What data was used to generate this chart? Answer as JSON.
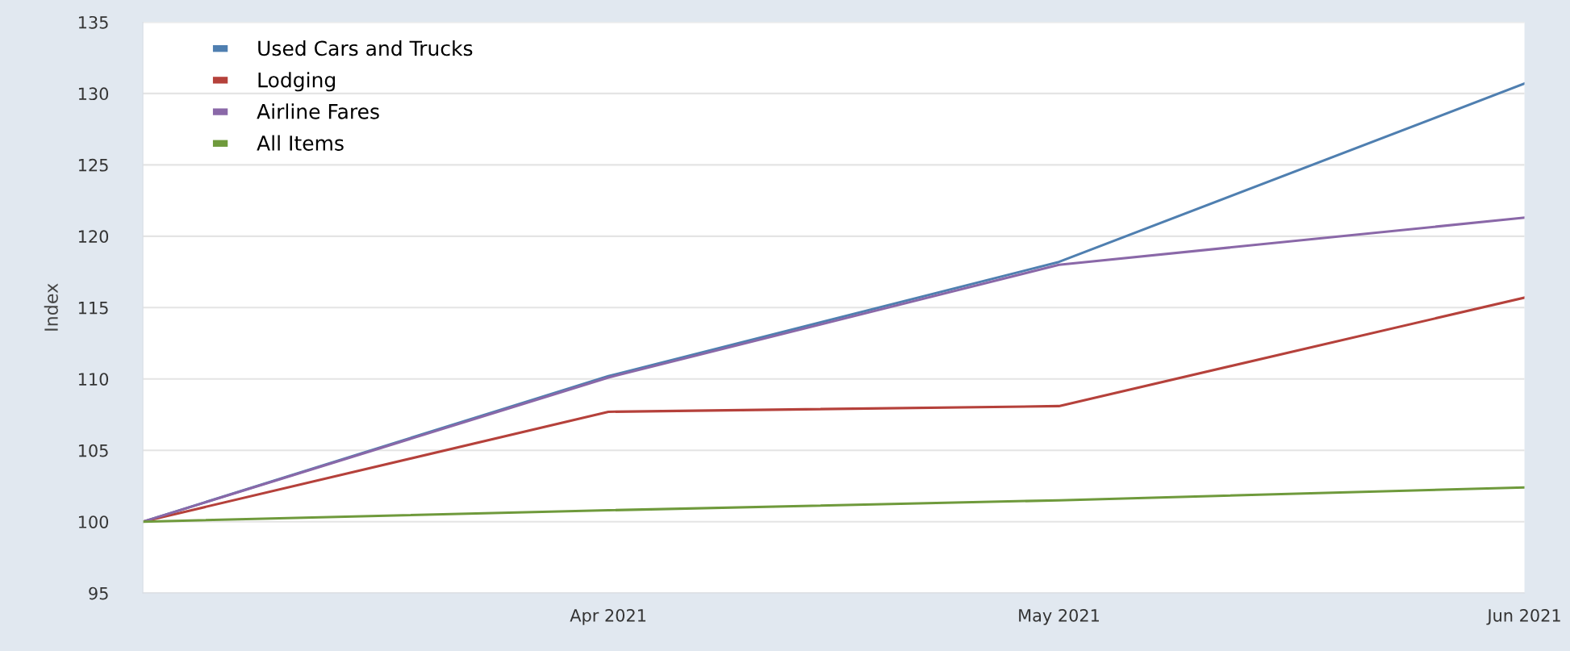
{
  "chart_data": {
    "type": "line",
    "ylabel": "Index",
    "x": [
      "2021-03",
      "2021-04",
      "2021-05",
      "2021-06"
    ],
    "series": [
      {
        "name": "Used Cars and Trucks",
        "color": "#4f7fb0",
        "values": [
          100,
          110.2,
          118.2,
          130.7
        ]
      },
      {
        "name": "Lodging",
        "color": "#b5413b",
        "values": [
          100,
          107.7,
          108.1,
          115.7
        ]
      },
      {
        "name": "Airline Fares",
        "color": "#8a68a8",
        "values": [
          100,
          110.1,
          118.0,
          121.3
        ]
      },
      {
        "name": "All Items",
        "color": "#6f9a3c",
        "values": [
          100,
          100.8,
          101.5,
          102.4
        ]
      }
    ],
    "xlim": [
      "2021-03",
      "2021-06"
    ],
    "xticks": [
      {
        "value": "2021-04",
        "label": "Apr 2021"
      },
      {
        "value": "2021-05",
        "label": "May 2021"
      },
      {
        "value": "2021-06",
        "label": "Jun 2021"
      }
    ],
    "ylim": [
      95,
      135
    ],
    "yticks": [
      95,
      100,
      105,
      110,
      115,
      120,
      125,
      130,
      135
    ],
    "grid": "y",
    "legend": "top left",
    "marker": "none",
    "line_style": "solid"
  }
}
